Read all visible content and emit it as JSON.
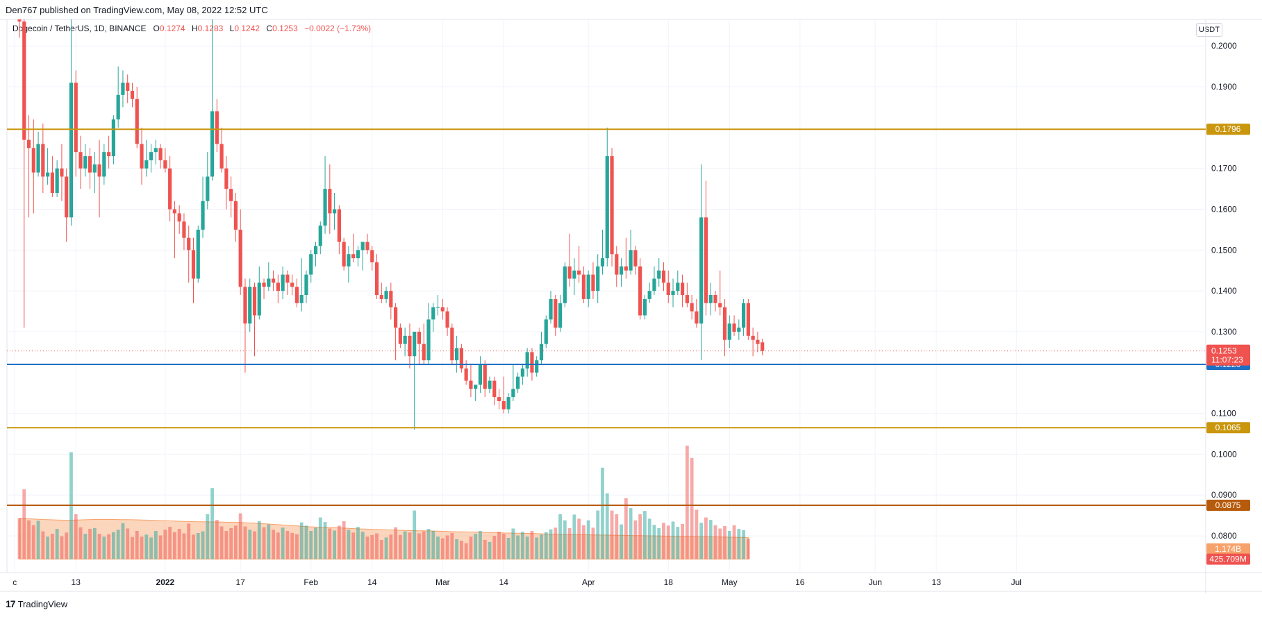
{
  "header": {
    "published": "Den767 published on TradingView.com, May 08, 2022 12:52 UTC"
  },
  "legend": {
    "symbol": "Dogecoin / TetherUS, 1D, BINANCE",
    "o_label": "O",
    "o": "0.1274",
    "h_label": "H",
    "h": "0.1283",
    "l_label": "L",
    "l": "0.1242",
    "c_label": "C",
    "c": "0.1253",
    "change": "−0.0022 (−1.73%)"
  },
  "currency": "USDT",
  "footer": {
    "brand": "TradingView",
    "logo": "17"
  },
  "colors": {
    "up": "#26a69a",
    "down": "#ef5350",
    "level_gold": "#c9960c",
    "level_blue": "#1e6fc4",
    "level_brown": "#b65a0b",
    "volume_ma": "#f7a26a"
  },
  "chart_data": {
    "type": "candlestick",
    "ylim": [
      0.071,
      0.2065
    ],
    "yticks": [
      "0.2000",
      "0.1900",
      "0.1700",
      "0.1600",
      "0.1500",
      "0.1400",
      "0.1300",
      "0.1100",
      "0.1000",
      "0.0900",
      "0.0800"
    ],
    "ytick_values": [
      0.2,
      0.19,
      0.17,
      0.16,
      0.15,
      0.14,
      0.13,
      0.11,
      0.1,
      0.09,
      0.08
    ],
    "xlabels": [
      {
        "label": "c",
        "day": -1
      },
      {
        "label": "13",
        "day": 12
      },
      {
        "label": "2022",
        "day": 31
      },
      {
        "label": "17",
        "day": 47
      },
      {
        "label": "Feb",
        "day": 62
      },
      {
        "label": "14",
        "day": 75
      },
      {
        "label": "Mar",
        "day": 90
      },
      {
        "label": "14",
        "day": 103
      },
      {
        "label": "Apr",
        "day": 121
      },
      {
        "label": "18",
        "day": 138
      },
      {
        "label": "May",
        "day": 151
      },
      {
        "label": "16",
        "day": 166
      },
      {
        "label": "Jun",
        "day": 182
      },
      {
        "label": "13",
        "day": 195
      },
      {
        "label": "Jul",
        "day": 212
      }
    ],
    "levels": [
      {
        "value": 0.1796,
        "label": "0.1796",
        "color": "#c9960c"
      },
      {
        "value": 0.122,
        "label": "0.1220",
        "color": "#1e6fc4"
      },
      {
        "value": 0.1065,
        "label": "0.1065",
        "color": "#c9960c"
      },
      {
        "value": 0.0875,
        "label": "0.0875",
        "color": "#b65a0b"
      }
    ],
    "last_price": {
      "value": 0.1253,
      "label": "0.1253",
      "countdown": "11:07:23"
    },
    "volume_labels": [
      {
        "label": "1.174B",
        "color": "#f7a26a",
        "value": 0.0768
      },
      {
        "label": "425.709M",
        "color": "#ef5350",
        "value": 0.0743
      }
    ],
    "candles": [
      [
        0.21,
        0.214,
        0.202,
        0.206
      ],
      [
        0.206,
        0.208,
        0.131,
        0.177
      ],
      [
        0.177,
        0.183,
        0.158,
        0.175
      ],
      [
        0.175,
        0.182,
        0.159,
        0.169
      ],
      [
        0.169,
        0.179,
        0.168,
        0.176
      ],
      [
        0.176,
        0.181,
        0.164,
        0.168
      ],
      [
        0.168,
        0.175,
        0.166,
        0.169
      ],
      [
        0.169,
        0.173,
        0.163,
        0.164
      ],
      [
        0.164,
        0.172,
        0.163,
        0.17
      ],
      [
        0.17,
        0.176,
        0.162,
        0.168
      ],
      [
        0.168,
        0.17,
        0.152,
        0.158
      ],
      [
        0.158,
        0.21,
        0.156,
        0.191
      ],
      [
        0.191,
        0.194,
        0.168,
        0.174
      ],
      [
        0.174,
        0.178,
        0.165,
        0.17
      ],
      [
        0.17,
        0.176,
        0.168,
        0.173
      ],
      [
        0.173,
        0.175,
        0.165,
        0.169
      ],
      [
        0.169,
        0.174,
        0.164,
        0.171
      ],
      [
        0.171,
        0.177,
        0.158,
        0.168
      ],
      [
        0.168,
        0.176,
        0.166,
        0.174
      ],
      [
        0.174,
        0.178,
        0.17,
        0.173
      ],
      [
        0.173,
        0.183,
        0.171,
        0.182
      ],
      [
        0.182,
        0.195,
        0.18,
        0.188
      ],
      [
        0.188,
        0.194,
        0.185,
        0.191
      ],
      [
        0.191,
        0.193,
        0.186,
        0.189
      ],
      [
        0.189,
        0.191,
        0.185,
        0.187
      ],
      [
        0.187,
        0.19,
        0.175,
        0.176
      ],
      [
        0.176,
        0.18,
        0.166,
        0.17
      ],
      [
        0.17,
        0.177,
        0.168,
        0.172
      ],
      [
        0.172,
        0.176,
        0.169,
        0.174
      ],
      [
        0.174,
        0.177,
        0.171,
        0.175
      ],
      [
        0.175,
        0.176,
        0.17,
        0.172
      ],
      [
        0.172,
        0.175,
        0.169,
        0.17
      ],
      [
        0.17,
        0.173,
        0.157,
        0.16
      ],
      [
        0.16,
        0.162,
        0.148,
        0.159
      ],
      [
        0.159,
        0.161,
        0.154,
        0.157
      ],
      [
        0.157,
        0.159,
        0.15,
        0.153
      ],
      [
        0.153,
        0.156,
        0.142,
        0.15
      ],
      [
        0.15,
        0.153,
        0.137,
        0.143
      ],
      [
        0.143,
        0.156,
        0.142,
        0.155
      ],
      [
        0.155,
        0.168,
        0.153,
        0.162
      ],
      [
        0.162,
        0.174,
        0.16,
        0.168
      ],
      [
        0.168,
        0.213,
        0.167,
        0.184
      ],
      [
        0.184,
        0.187,
        0.174,
        0.176
      ],
      [
        0.176,
        0.18,
        0.169,
        0.17
      ],
      [
        0.17,
        0.173,
        0.16,
        0.165
      ],
      [
        0.165,
        0.168,
        0.158,
        0.162
      ],
      [
        0.162,
        0.164,
        0.152,
        0.155
      ],
      [
        0.155,
        0.16,
        0.139,
        0.141
      ],
      [
        0.141,
        0.143,
        0.12,
        0.132
      ],
      [
        0.132,
        0.143,
        0.13,
        0.141
      ],
      [
        0.141,
        0.142,
        0.124,
        0.134
      ],
      [
        0.134,
        0.146,
        0.133,
        0.142
      ],
      [
        0.142,
        0.143,
        0.138,
        0.141
      ],
      [
        0.141,
        0.147,
        0.14,
        0.143
      ],
      [
        0.143,
        0.145,
        0.14,
        0.142
      ],
      [
        0.142,
        0.144,
        0.137,
        0.14
      ],
      [
        0.14,
        0.146,
        0.138,
        0.144
      ],
      [
        0.144,
        0.145,
        0.139,
        0.142
      ],
      [
        0.142,
        0.144,
        0.139,
        0.141
      ],
      [
        0.141,
        0.143,
        0.136,
        0.137
      ],
      [
        0.137,
        0.148,
        0.135,
        0.139
      ],
      [
        0.139,
        0.145,
        0.137,
        0.144
      ],
      [
        0.144,
        0.15,
        0.142,
        0.149
      ],
      [
        0.149,
        0.152,
        0.146,
        0.151
      ],
      [
        0.151,
        0.157,
        0.149,
        0.156
      ],
      [
        0.156,
        0.173,
        0.154,
        0.165
      ],
      [
        0.165,
        0.171,
        0.154,
        0.159
      ],
      [
        0.159,
        0.164,
        0.155,
        0.16
      ],
      [
        0.16,
        0.161,
        0.149,
        0.152
      ],
      [
        0.152,
        0.153,
        0.145,
        0.146
      ],
      [
        0.146,
        0.151,
        0.142,
        0.149
      ],
      [
        0.149,
        0.154,
        0.147,
        0.148
      ],
      [
        0.148,
        0.151,
        0.146,
        0.15
      ],
      [
        0.15,
        0.152,
        0.145,
        0.152
      ],
      [
        0.152,
        0.154,
        0.149,
        0.15
      ],
      [
        0.15,
        0.151,
        0.145,
        0.147
      ],
      [
        0.147,
        0.149,
        0.138,
        0.139
      ],
      [
        0.139,
        0.142,
        0.137,
        0.138
      ],
      [
        0.138,
        0.141,
        0.137,
        0.14
      ],
      [
        0.14,
        0.142,
        0.133,
        0.136
      ],
      [
        0.136,
        0.137,
        0.123,
        0.131
      ],
      [
        0.131,
        0.132,
        0.126,
        0.127
      ],
      [
        0.127,
        0.131,
        0.124,
        0.129
      ],
      [
        0.129,
        0.132,
        0.121,
        0.124
      ],
      [
        0.124,
        0.13,
        0.106,
        0.13
      ],
      [
        0.13,
        0.131,
        0.122,
        0.127
      ],
      [
        0.127,
        0.132,
        0.122,
        0.123
      ],
      [
        0.123,
        0.137,
        0.122,
        0.133
      ],
      [
        0.133,
        0.137,
        0.13,
        0.136
      ],
      [
        0.136,
        0.139,
        0.134,
        0.136
      ],
      [
        0.136,
        0.138,
        0.133,
        0.135
      ],
      [
        0.135,
        0.136,
        0.129,
        0.131
      ],
      [
        0.131,
        0.132,
        0.122,
        0.123
      ],
      [
        0.123,
        0.129,
        0.12,
        0.126
      ],
      [
        0.126,
        0.127,
        0.12,
        0.121
      ],
      [
        0.121,
        0.123,
        0.117,
        0.118
      ],
      [
        0.118,
        0.122,
        0.114,
        0.116
      ],
      [
        0.116,
        0.117,
        0.113,
        0.117
      ],
      [
        0.117,
        0.124,
        0.115,
        0.122
      ],
      [
        0.122,
        0.123,
        0.114,
        0.116
      ],
      [
        0.116,
        0.119,
        0.115,
        0.118
      ],
      [
        0.118,
        0.119,
        0.112,
        0.114
      ],
      [
        0.114,
        0.116,
        0.111,
        0.113
      ],
      [
        0.113,
        0.119,
        0.11,
        0.111
      ],
      [
        0.111,
        0.115,
        0.11,
        0.114
      ],
      [
        0.114,
        0.122,
        0.113,
        0.116
      ],
      [
        0.116,
        0.12,
        0.115,
        0.119
      ],
      [
        0.119,
        0.122,
        0.117,
        0.121
      ],
      [
        0.121,
        0.126,
        0.119,
        0.125
      ],
      [
        0.125,
        0.126,
        0.118,
        0.12
      ],
      [
        0.12,
        0.124,
        0.119,
        0.123
      ],
      [
        0.123,
        0.13,
        0.122,
        0.127
      ],
      [
        0.127,
        0.134,
        0.126,
        0.133
      ],
      [
        0.133,
        0.14,
        0.132,
        0.138
      ],
      [
        0.138,
        0.139,
        0.129,
        0.131
      ],
      [
        0.131,
        0.139,
        0.13,
        0.137
      ],
      [
        0.137,
        0.147,
        0.136,
        0.146
      ],
      [
        0.146,
        0.154,
        0.141,
        0.143
      ],
      [
        0.143,
        0.148,
        0.139,
        0.145
      ],
      [
        0.145,
        0.151,
        0.142,
        0.144
      ],
      [
        0.144,
        0.146,
        0.137,
        0.138
      ],
      [
        0.138,
        0.145,
        0.136,
        0.144
      ],
      [
        0.144,
        0.147,
        0.138,
        0.14
      ],
      [
        0.14,
        0.149,
        0.137,
        0.146
      ],
      [
        0.146,
        0.155,
        0.144,
        0.148
      ],
      [
        0.148,
        0.18,
        0.146,
        0.173
      ],
      [
        0.173,
        0.175,
        0.146,
        0.149
      ],
      [
        0.149,
        0.151,
        0.141,
        0.144
      ],
      [
        0.144,
        0.148,
        0.141,
        0.146
      ],
      [
        0.146,
        0.153,
        0.143,
        0.145
      ],
      [
        0.145,
        0.155,
        0.144,
        0.15
      ],
      [
        0.15,
        0.151,
        0.144,
        0.146
      ],
      [
        0.146,
        0.148,
        0.133,
        0.134
      ],
      [
        0.134,
        0.139,
        0.133,
        0.138
      ],
      [
        0.138,
        0.142,
        0.137,
        0.14
      ],
      [
        0.14,
        0.146,
        0.139,
        0.143
      ],
      [
        0.143,
        0.148,
        0.141,
        0.145
      ],
      [
        0.145,
        0.147,
        0.14,
        0.142
      ],
      [
        0.142,
        0.145,
        0.137,
        0.139
      ],
      [
        0.139,
        0.143,
        0.136,
        0.14
      ],
      [
        0.14,
        0.145,
        0.139,
        0.142
      ],
      [
        0.142,
        0.144,
        0.136,
        0.139
      ],
      [
        0.139,
        0.142,
        0.136,
        0.137
      ],
      [
        0.137,
        0.139,
        0.133,
        0.135
      ],
      [
        0.135,
        0.138,
        0.131,
        0.132
      ],
      [
        0.132,
        0.171,
        0.123,
        0.158
      ],
      [
        0.158,
        0.167,
        0.134,
        0.137
      ],
      [
        0.137,
        0.142,
        0.134,
        0.139
      ],
      [
        0.139,
        0.14,
        0.135,
        0.137
      ],
      [
        0.137,
        0.145,
        0.134,
        0.136
      ],
      [
        0.136,
        0.138,
        0.124,
        0.128
      ],
      [
        0.128,
        0.134,
        0.126,
        0.132
      ],
      [
        0.132,
        0.134,
        0.129,
        0.13
      ],
      [
        0.13,
        0.133,
        0.128,
        0.131
      ],
      [
        0.131,
        0.138,
        0.129,
        0.137
      ],
      [
        0.137,
        0.138,
        0.128,
        0.129
      ],
      [
        0.129,
        0.131,
        0.124,
        0.128
      ],
      [
        0.128,
        0.13,
        0.125,
        0.127
      ],
      [
        0.1274,
        0.1283,
        0.1242,
        0.1253
      ]
    ],
    "volume": [
      0.0843,
      0.0914,
      0.0838,
      0.0826,
      0.0837,
      0.0811,
      0.0798,
      0.0805,
      0.0817,
      0.0799,
      0.0808,
      0.1005,
      0.0853,
      0.0821,
      0.0805,
      0.0817,
      0.0819,
      0.0805,
      0.0798,
      0.0804,
      0.0809,
      0.0815,
      0.0831,
      0.0818,
      0.0797,
      0.0812,
      0.0798,
      0.0803,
      0.0796,
      0.0812,
      0.0801,
      0.0815,
      0.0822,
      0.0809,
      0.0817,
      0.0806,
      0.083,
      0.0803,
      0.0807,
      0.0811,
      0.0853,
      0.0917,
      0.0839,
      0.0823,
      0.0812,
      0.0819,
      0.0825,
      0.0855,
      0.0823,
      0.0815,
      0.0811,
      0.0836,
      0.0821,
      0.0828,
      0.0815,
      0.0808,
      0.082,
      0.0812,
      0.0807,
      0.0804,
      0.0833,
      0.0825,
      0.0812,
      0.082,
      0.0845,
      0.0834,
      0.0818,
      0.0813,
      0.0825,
      0.0836,
      0.0815,
      0.0808,
      0.0822,
      0.081,
      0.0798,
      0.0802,
      0.0806,
      0.079,
      0.0796,
      0.0803,
      0.0821,
      0.0802,
      0.0811,
      0.0808,
      0.0862,
      0.0806,
      0.0811,
      0.0817,
      0.0812,
      0.0798,
      0.0794,
      0.0801,
      0.0807,
      0.0792,
      0.0788,
      0.0782,
      0.0798,
      0.0805,
      0.0812,
      0.079,
      0.0785,
      0.08,
      0.081,
      0.0805,
      0.0795,
      0.0818,
      0.0801,
      0.081,
      0.0798,
      0.0812,
      0.0796,
      0.0803,
      0.0809,
      0.0816,
      0.082,
      0.0853,
      0.0838,
      0.0819,
      0.0852,
      0.0842,
      0.0826,
      0.0838,
      0.082,
      0.0862,
      0.0967,
      0.0904,
      0.0862,
      0.0853,
      0.0828,
      0.0892,
      0.0868,
      0.0838,
      0.0853,
      0.0861,
      0.0842,
      0.0827,
      0.0819,
      0.0832,
      0.0825,
      0.0835,
      0.0822,
      0.0829,
      0.1021,
      0.0991,
      0.0864,
      0.0832,
      0.0845,
      0.0839,
      0.0826,
      0.0818,
      0.0824,
      0.0812,
      0.0826,
      0.0817,
      0.0814,
      0.0793
    ],
    "volume_ma": [
      0.0843,
      0.084,
      0.0838,
      0.084,
      0.084,
      0.0839,
      0.0837,
      0.0835,
      0.0834,
      0.0833,
      0.083,
      0.0826,
      0.0822,
      0.082,
      0.0817,
      0.0815,
      0.0813,
      0.0812,
      0.081,
      0.0809,
      0.0807,
      0.0806,
      0.0804,
      0.0803,
      0.0802,
      0.0801,
      0.08,
      0.0799,
      0.0798,
      0.0797,
      0.0796
    ]
  }
}
